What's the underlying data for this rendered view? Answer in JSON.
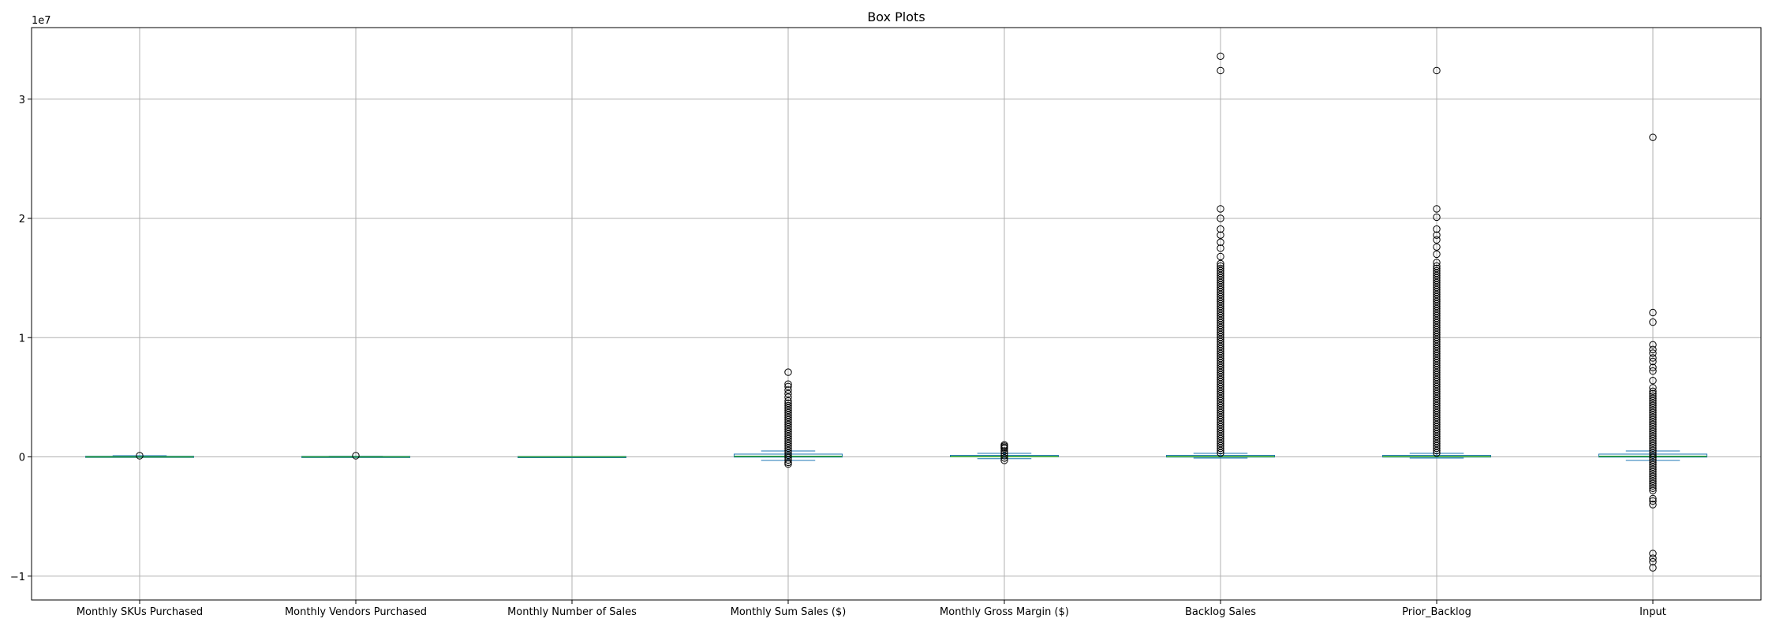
{
  "chart_data": {
    "type": "box",
    "title": "Box Plots",
    "offset_label": "1e7",
    "xlabel": "",
    "ylabel": "",
    "ylim": [
      -1.2,
      3.6
    ],
    "y_ticks": [
      -1,
      0,
      1,
      2,
      3
    ],
    "y_tick_labels": [
      "−1",
      "0",
      "1",
      "2",
      "3"
    ],
    "grid": true,
    "categories": [
      "Monthly SKUs Purchased",
      "Monthly Vendors Purchased",
      "Monthly Number of Sales",
      "Monthly Sum Sales ($)",
      "Monthly Gross Margin ($)",
      "Backlog Sales",
      "Prior_Backlog",
      "Input"
    ],
    "boxes": [
      {
        "q1": 0,
        "median": 0,
        "q3": 0.002,
        "whisker_low": 0,
        "whisker_high": 0.01,
        "outlier_range": [
          0.0,
          0.01
        ],
        "outliers": []
      },
      {
        "q1": 0,
        "median": 0,
        "q3": 0.001,
        "whisker_low": 0,
        "whisker_high": 0.005,
        "outlier_range": [
          0.0,
          0.01
        ],
        "outliers": []
      },
      {
        "q1": 0,
        "median": 0,
        "q3": 0.0,
        "whisker_low": 0,
        "whisker_high": 0.0,
        "outlier_range": null,
        "outliers": []
      },
      {
        "q1": -0.005,
        "median": 0.005,
        "q3": 0.02,
        "whisker_low": -0.03,
        "whisker_high": 0.05,
        "outlier_range": [
          -0.055,
          0.45
        ],
        "outliers": [
          -0.06,
          0.47,
          0.5,
          0.53,
          0.56,
          0.59,
          0.61,
          0.71
        ]
      },
      {
        "q1": -0.002,
        "median": 0.002,
        "q3": 0.01,
        "whisker_low": -0.015,
        "whisker_high": 0.03,
        "outlier_range": [
          -0.03,
          0.07
        ],
        "outliers": [
          0.08,
          0.09,
          0.1
        ]
      },
      {
        "q1": -0.005,
        "median": 0.002,
        "q3": 0.01,
        "whisker_low": -0.01,
        "whisker_high": 0.03,
        "outlier_range": [
          0.03,
          1.6
        ],
        "outliers": [
          1.62,
          1.68,
          1.75,
          1.8,
          1.86,
          1.91,
          2.0,
          2.08,
          3.24,
          3.36
        ]
      },
      {
        "q1": -0.005,
        "median": 0.002,
        "q3": 0.01,
        "whisker_low": -0.01,
        "whisker_high": 0.03,
        "outlier_range": [
          0.03,
          1.6
        ],
        "outliers": [
          1.63,
          1.7,
          1.76,
          1.82,
          1.86,
          1.91,
          2.01,
          2.08,
          3.24
        ]
      },
      {
        "q1": -0.005,
        "median": 0.005,
        "q3": 0.02,
        "whisker_low": -0.03,
        "whisker_high": 0.05,
        "outlier_range": [
          -0.3,
          0.55
        ],
        "outliers": [
          -0.4,
          -0.37,
          -0.35,
          -0.81,
          -0.85,
          -0.88,
          -0.93,
          0.58,
          0.64,
          0.72,
          0.75,
          0.8,
          0.83,
          0.87,
          0.9,
          0.94,
          1.13,
          1.21,
          2.68
        ]
      }
    ],
    "colors": {
      "box": "#1f77b4",
      "median": "#2ca02c",
      "outlier_edge": "#000000",
      "grid": "#b0b0b0"
    }
  }
}
